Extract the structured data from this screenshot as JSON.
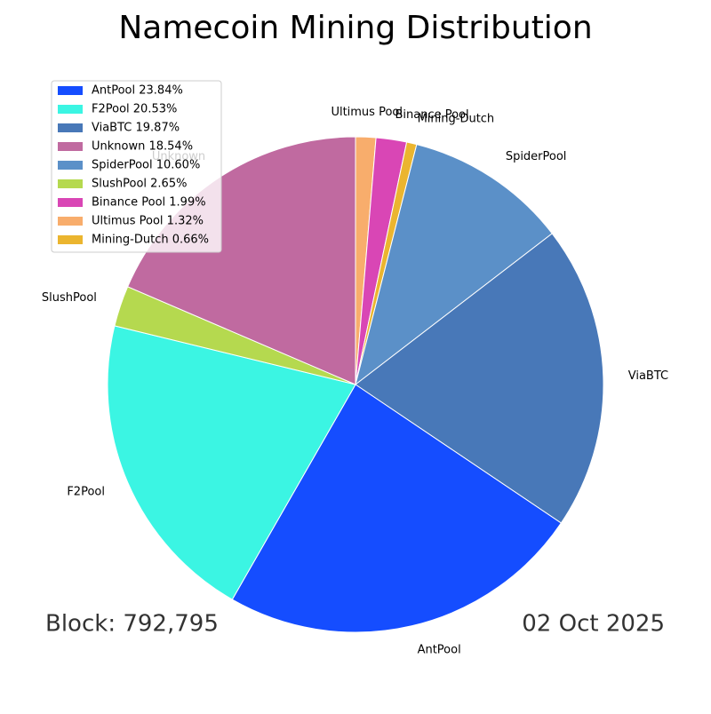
{
  "chart_data": {
    "type": "pie",
    "title": "Namecoin Mining Distribution",
    "categories": [
      "AntPool",
      "F2Pool",
      "ViaBTC",
      "Unknown",
      "SpiderPool",
      "SlushPool",
      "Binance Pool",
      "Ultimus Pool",
      "Mining-Dutch"
    ],
    "values": [
      23.84,
      20.53,
      19.87,
      18.54,
      10.6,
      2.65,
      1.99,
      1.32,
      0.66
    ],
    "legend_labels": [
      "AntPool 23.84%",
      "F2Pool 20.53%",
      "ViaBTC 19.87%",
      "Unknown 18.54%",
      "SpiderPool 10.60%",
      "SlushPool 2.65%",
      "Binance Pool 1.99%",
      "Ultimus Pool 1.32%",
      "Mining-Dutch 0.66%"
    ],
    "colors": [
      "#154dff",
      "#3bf5e3",
      "#4878b8",
      "#c06aa0",
      "#5b90c8",
      "#b5d94f",
      "#d946b5",
      "#f8ad6c",
      "#ebb52f"
    ],
    "legend": "upper left",
    "annotations": [
      "Block: 792,795",
      "02 Oct 2025"
    ]
  }
}
